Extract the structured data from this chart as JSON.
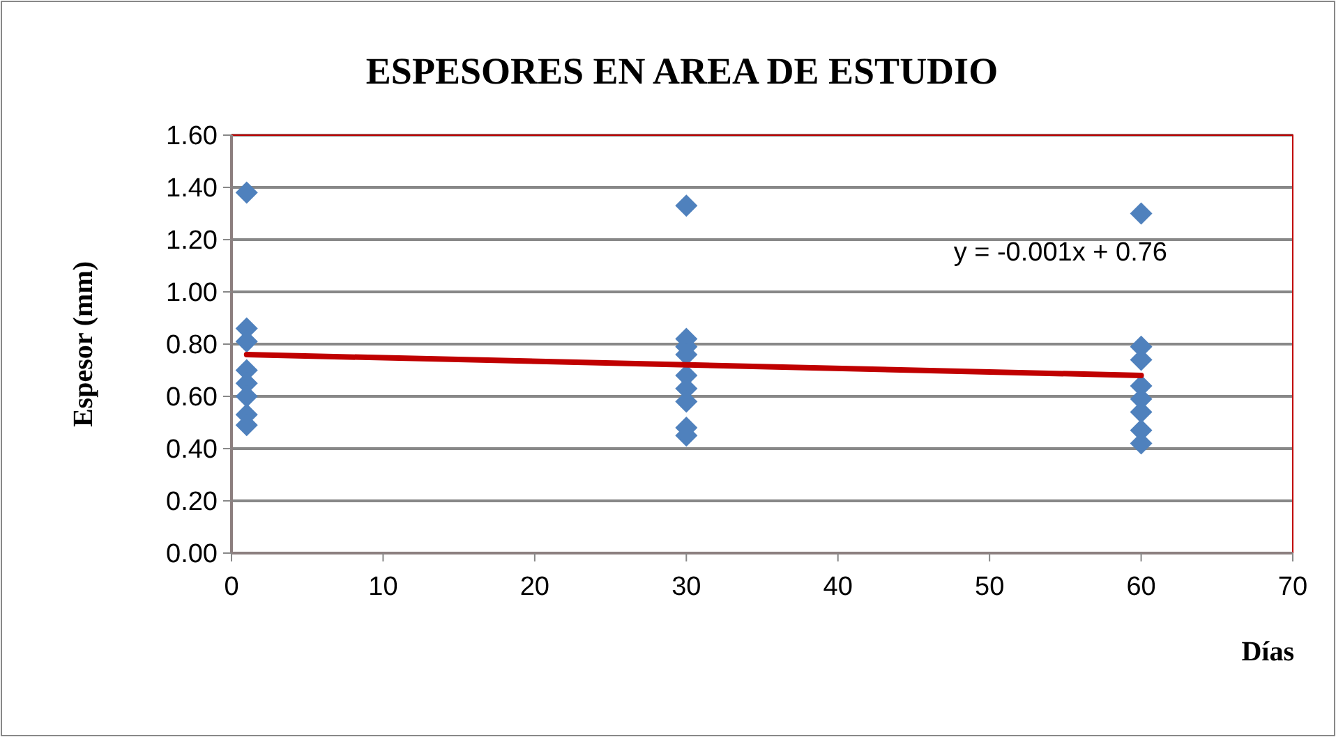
{
  "chart_data": {
    "type": "scatter",
    "title": "ESPESORES EN AREA DE ESTUDIO",
    "xlabel": "Días",
    "ylabel": "Espesor (mm)",
    "xlim": [
      0,
      70
    ],
    "xticks": [
      0,
      10,
      20,
      30,
      40,
      50,
      60,
      70
    ],
    "ylim": [
      0,
      1.6
    ],
    "yticks": [
      {
        "value": 0,
        "label": "0.00"
      },
      {
        "value": 0.2,
        "label": "0.20"
      },
      {
        "value": 0.4,
        "label": "0.40"
      },
      {
        "value": 0.6,
        "label": "0.60"
      },
      {
        "value": 0.8,
        "label": "0.80"
      },
      {
        "value": 1,
        "label": "1.00"
      },
      {
        "value": 1.2,
        "label": "1.20"
      },
      {
        "value": 1.4,
        "label": "1.40"
      },
      {
        "value": 1.6,
        "label": "1.60"
      }
    ],
    "grid": "y",
    "series": [
      {
        "marker": "diamond",
        "color": "#4f81bd",
        "x": [
          1,
          1,
          1,
          1,
          1,
          1,
          1,
          1,
          30,
          30,
          30,
          30,
          30,
          30,
          30,
          30,
          30,
          60,
          60,
          60,
          60,
          60,
          60,
          60,
          60
        ],
        "values": [
          1.38,
          0.86,
          0.81,
          0.7,
          0.65,
          0.6,
          0.53,
          0.49,
          1.33,
          0.82,
          0.79,
          0.76,
          0.68,
          0.63,
          0.58,
          0.48,
          0.45,
          1.3,
          0.79,
          0.74,
          0.64,
          0.59,
          0.54,
          0.47,
          0.42
        ]
      },
      {
        "type": "line",
        "color": "#c00000",
        "x": [
          1,
          60
        ],
        "values": [
          0.76,
          0.68
        ]
      }
    ],
    "annotations": [
      "y = -0.001x + 0.76"
    ]
  }
}
